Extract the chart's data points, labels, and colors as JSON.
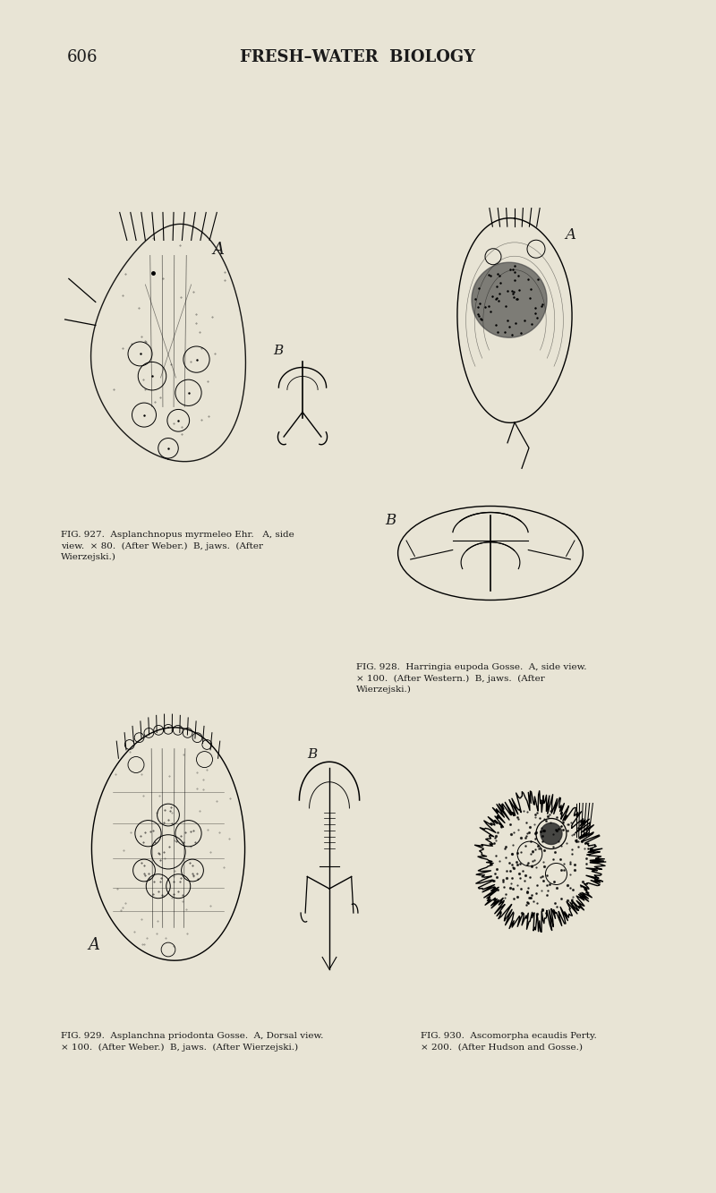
{
  "background_color": "#e8e4d5",
  "page_color": "#e8e4d5",
  "page_number": "606",
  "header_title": "FRESH–WATER  BIOLOGY",
  "header_fontsize": 13,
  "page_number_fontsize": 12,
  "caption_927_line1": "FIG. 927.  Asplanchnopus myrmeleo Ehr.   A, side",
  "caption_927_line2": "view.  × 80.  (After Weber.)  B, jaws.  (After",
  "caption_927_line3": "Wierzejski.)",
  "caption_928_line1": "FIG. 928.  Harringia eupoda Gosse.  A, side view.",
  "caption_928_line2": "× 100.  (After Western.)  B, jaws.  (After",
  "caption_928_line3": "Wierzejski.)",
  "caption_929_line1": "FIG. 929.  Asplanchna priodonta Gosse.  A, Dorsal view.",
  "caption_929_line2": "× 100.  (After Weber.)  B, jaws.  (After Wierzejski.)",
  "caption_930_line1": "FIG. 930.  Ascomorpha ecaudis Perty.",
  "caption_930_line2": "× 200.  (After Hudson and Gosse.)",
  "caption_fontsize": 7.5,
  "label_color": "#1a1a1a",
  "line_color": "#2a2a2a"
}
